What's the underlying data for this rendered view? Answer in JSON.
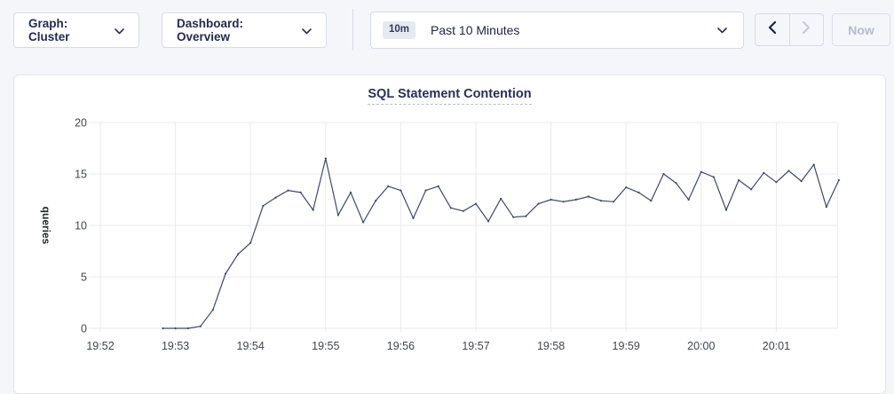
{
  "toolbar": {
    "graph_dropdown": {
      "label": "Graph: Cluster"
    },
    "dashboard_dropdown": {
      "label": "Dashboard: Overview"
    },
    "time_picker": {
      "badge": "10m",
      "label": "Past 10 Minutes"
    },
    "now_button": {
      "label": "Now"
    }
  },
  "chart": {
    "title": "SQL Statement Contention"
  },
  "chart_data": {
    "type": "line",
    "title": "SQL Statement Contention",
    "xlabel": "",
    "ylabel": "queries",
    "ylim": [
      0,
      20
    ],
    "yticks": [
      0,
      5,
      10,
      15,
      20
    ],
    "xticks": [
      "19:52",
      "19:53",
      "19:54",
      "19:55",
      "19:56",
      "19:57",
      "19:58",
      "19:59",
      "20:00",
      "20:01"
    ],
    "grid": true,
    "legend": "none",
    "series": [
      {
        "name": "SQL Statement Contention",
        "start_time": "19:52:50",
        "interval_seconds": 10,
        "values": [
          0,
          0,
          0,
          0.2,
          1.8,
          5.3,
          7.2,
          8.3,
          11.9,
          12.7,
          13.4,
          13.2,
          11.5,
          16.5,
          11.0,
          13.2,
          10.3,
          12.4,
          13.8,
          13.4,
          10.7,
          13.4,
          13.8,
          11.7,
          11.4,
          12.1,
          10.4,
          12.6,
          10.8,
          10.9,
          12.1,
          12.5,
          12.3,
          12.5,
          12.8,
          12.4,
          12.3,
          13.7,
          13.2,
          12.4,
          15.0,
          14.1,
          12.5,
          15.2,
          14.7,
          11.5,
          14.4,
          13.5,
          15.1,
          14.2,
          15.3,
          14.3,
          15.9,
          11.8,
          14.4
        ]
      }
    ]
  },
  "colors": {
    "accent_navy": "#242b50",
    "line": "#3e4a6a",
    "grid": "#ebebee",
    "page_bg": "#f4f6fa",
    "card_border": "#e3e6ec",
    "disabled_text": "#b6bcc8",
    "badge_bg": "#e5eaf1"
  }
}
